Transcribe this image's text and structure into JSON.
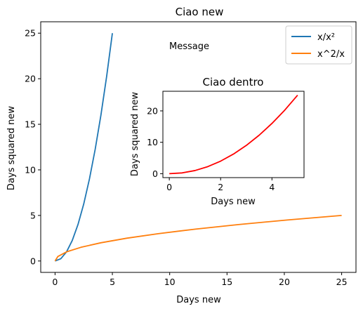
{
  "colors": {
    "series_blue": "#1f77b4",
    "series_orange": "#ff7f0e",
    "inset_red": "#ff0000",
    "axis": "#000000",
    "legend_frame": "#cccccc"
  },
  "chart_data": [
    {
      "type": "line",
      "title": "Ciao new",
      "xlabel": "Days new",
      "ylabel": "Days squared new",
      "xlim": [
        -1.25,
        26.25
      ],
      "ylim": [
        -1.25,
        26.25
      ],
      "xticks": [
        0,
        5,
        10,
        15,
        20,
        25
      ],
      "yticks": [
        0,
        5,
        10,
        15,
        20,
        25
      ],
      "grid": false,
      "legend_position": "top-right",
      "annotation": "Message",
      "series": [
        {
          "name": "x/x²",
          "color": "#1f77b4",
          "x": [
            0,
            0.5,
            1,
            1.5,
            2,
            2.5,
            3,
            3.5,
            4,
            4.5,
            5
          ],
          "y": [
            0,
            0.25,
            1,
            2.25,
            4,
            6.25,
            9,
            12.25,
            16,
            20.25,
            25
          ]
        },
        {
          "name": "x^2/x",
          "color": "#ff7f0e",
          "x": [
            0,
            0.25,
            1,
            2.25,
            4,
            6.25,
            9,
            12.25,
            16,
            20.25,
            25
          ],
          "y": [
            0,
            0.5,
            1,
            1.5,
            2,
            2.5,
            3,
            3.5,
            4,
            4.5,
            5
          ]
        }
      ]
    },
    {
      "type": "line",
      "title": "Ciao dentro",
      "xlabel": "Days new",
      "ylabel": "Days squared new",
      "xlim": [
        -0.25,
        5.25
      ],
      "ylim": [
        -1.25,
        26.25
      ],
      "xticks": [
        0,
        2,
        4
      ],
      "yticks": [
        0,
        10,
        20
      ],
      "grid": false,
      "series": [
        {
          "color": "#ff0000",
          "x": [
            0,
            0.5,
            1,
            1.5,
            2,
            2.5,
            3,
            3.5,
            4,
            4.5,
            5
          ],
          "y": [
            0,
            0.25,
            1,
            2.25,
            4,
            6.25,
            9,
            12.25,
            16,
            20.25,
            25
          ]
        }
      ]
    }
  ]
}
